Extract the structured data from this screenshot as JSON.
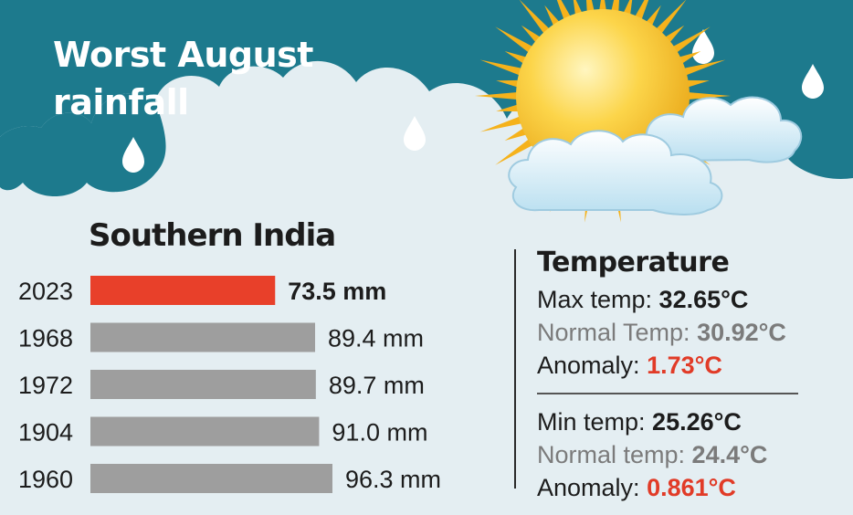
{
  "header": {
    "title": "Worst August rainfall"
  },
  "colors": {
    "banner": "#1d7a8d",
    "background": "#e4eef2",
    "bar_highlight": "#e8402a",
    "bar_default": "#9e9e9e",
    "anomaly": "#e13b27"
  },
  "chart_data": {
    "type": "bar",
    "orientation": "horizontal",
    "title": "Southern India",
    "categories": [
      "2023",
      "1968",
      "1972",
      "1904",
      "1960"
    ],
    "values": [
      73.5,
      89.4,
      89.7,
      91.0,
      96.3
    ],
    "value_labels": [
      "73.5 mm",
      "89.4 mm",
      "89.7 mm",
      "91.0 mm",
      "96.3 mm"
    ],
    "unit": "mm",
    "highlight_index": 0
  },
  "temperature": {
    "heading": "Temperature",
    "max": {
      "label": "Max temp: ",
      "value": "32.65°C",
      "normal_label": "Normal Temp: ",
      "normal_value": "30.92°C",
      "anomaly_label": "Anomaly: ",
      "anomaly_value": "1.73°C"
    },
    "min": {
      "label": "Min temp: ",
      "value": "25.26°C",
      "normal_label": "Normal temp: ",
      "normal_value": "24.4°C",
      "anomaly_label": "Anomaly: ",
      "anomaly_value": "0.861°C"
    }
  }
}
